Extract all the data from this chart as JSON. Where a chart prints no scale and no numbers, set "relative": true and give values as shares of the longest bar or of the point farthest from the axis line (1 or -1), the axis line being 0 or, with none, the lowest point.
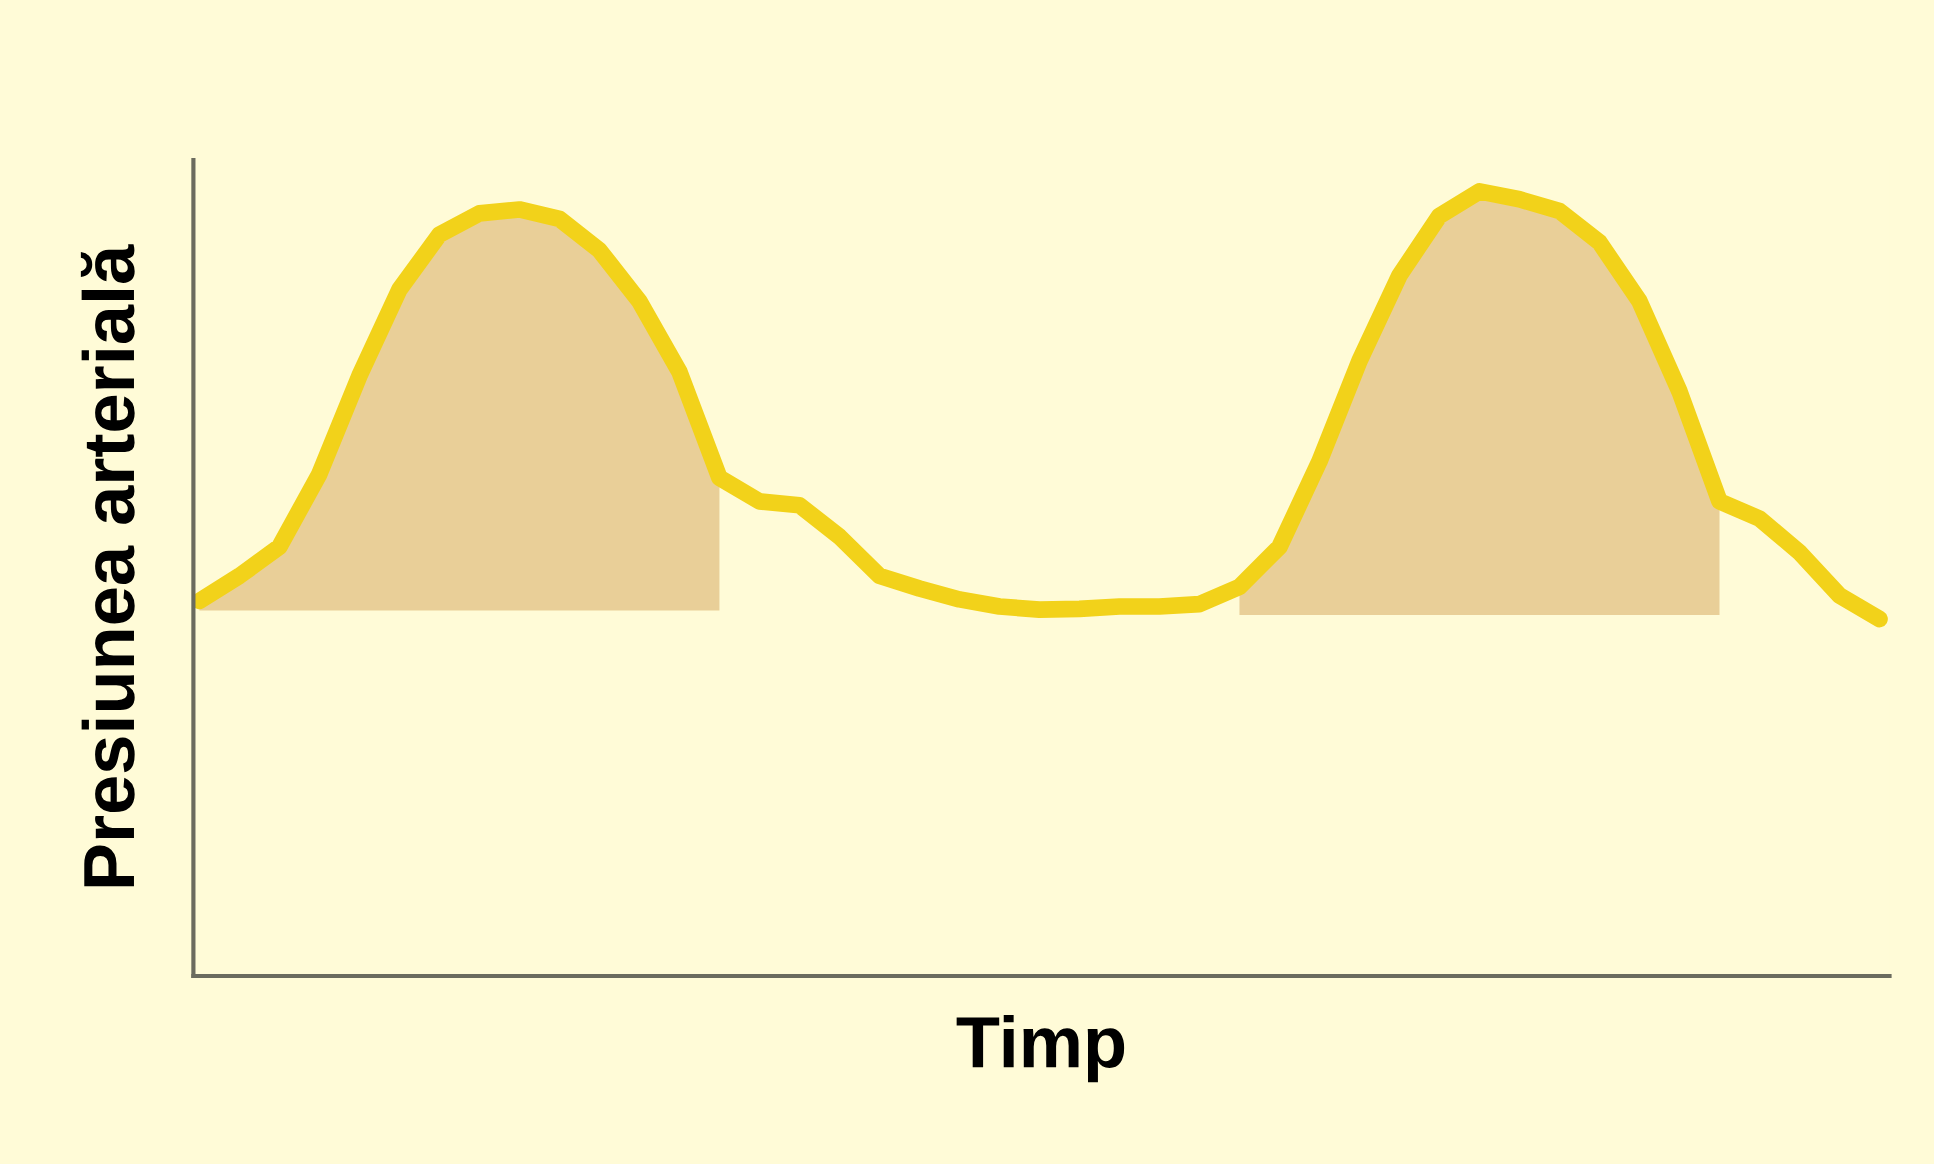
{
  "chart_data": {
    "type": "line",
    "xlabel": "Timp",
    "ylabel": "Presiunea arterială",
    "relative": true,
    "marker": "none",
    "line_style": "solid",
    "categories": [
      null,
      null,
      null,
      null,
      null,
      null,
      null,
      null,
      null,
      null,
      null,
      null,
      null,
      null,
      null,
      null,
      null,
      null,
      null,
      null,
      null,
      null,
      null,
      null,
      null,
      null,
      null,
      null,
      null,
      null,
      null,
      null,
      null,
      null,
      null,
      null,
      null,
      null,
      null,
      null,
      null,
      null,
      null
    ],
    "series": [
      {
        "color": "#f2d21a",
        "values": [
          0.478,
          0.51,
          0.547,
          0.64,
          0.765,
          0.875,
          0.945,
          0.972,
          0.977,
          0.965,
          0.925,
          0.86,
          0.77,
          0.635,
          0.605,
          0.6,
          0.56,
          0.51,
          0.494,
          0.48,
          0.471,
          0.467,
          0.468,
          0.471,
          0.471,
          0.474,
          0.496,
          0.547,
          0.656,
          0.784,
          0.893,
          0.969,
          1.0,
          0.99,
          0.975,
          0.935,
          0.86,
          0.745,
          0.605,
          0.583,
          0.54,
          0.485,
          0.455
        ],
        "lower": [
          0.466,
          0.466,
          0.466,
          0.466,
          0.466,
          0.466,
          0.466,
          0.466,
          0.466,
          0.466,
          0.466,
          0.466,
          0.466,
          0.466,
          null,
          null,
          null,
          null,
          null,
          null,
          null,
          null,
          null,
          null,
          null,
          null,
          0.46,
          0.46,
          0.46,
          0.46,
          0.46,
          0.46,
          0.46,
          0.46,
          0.46,
          0.46,
          0.46,
          0.46,
          0.46,
          null,
          null,
          null,
          null
        ],
        "upper": [
          0.478,
          0.51,
          0.547,
          0.64,
          0.765,
          0.875,
          0.945,
          0.972,
          0.977,
          0.965,
          0.925,
          0.86,
          0.77,
          0.635,
          null,
          null,
          null,
          null,
          null,
          null,
          null,
          null,
          null,
          null,
          null,
          null,
          0.496,
          0.547,
          0.656,
          0.784,
          0.893,
          0.969,
          1.0,
          0.99,
          0.975,
          0.935,
          0.86,
          0.745,
          0.605,
          null,
          null,
          null,
          null
        ]
      }
    ]
  }
}
